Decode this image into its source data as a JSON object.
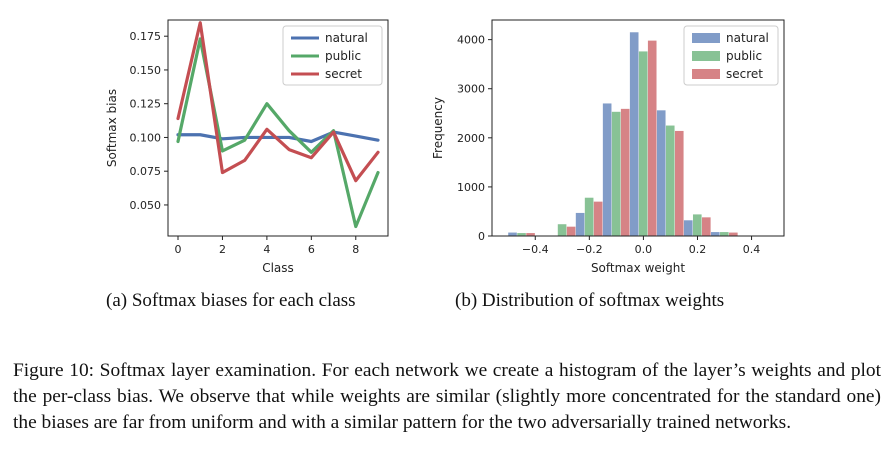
{
  "chart_data": [
    {
      "type": "line",
      "xlabel": "Class",
      "ylabel": "Softmax bias",
      "x": [
        0,
        1,
        2,
        3,
        4,
        5,
        6,
        7,
        8,
        9
      ],
      "xlim": [
        -0.45,
        9.45
      ],
      "ylim": [
        0.027,
        0.187
      ],
      "xticks": [
        "0",
        "2",
        "4",
        "6",
        "8"
      ],
      "yticks": [
        "0.050",
        "0.075",
        "0.100",
        "0.125",
        "0.150",
        "0.175"
      ],
      "legend_position": "top-right",
      "series": [
        {
          "name": "natural",
          "color": "#4c72b0",
          "values": [
            0.102,
            0.102,
            0.099,
            0.1,
            0.1,
            0.1,
            0.097,
            0.104,
            0.101,
            0.098
          ]
        },
        {
          "name": "public",
          "color": "#55a868",
          "values": [
            0.097,
            0.173,
            0.09,
            0.098,
            0.125,
            0.105,
            0.089,
            0.105,
            0.034,
            0.074
          ]
        },
        {
          "name": "secret",
          "color": "#c44e52",
          "values": [
            0.114,
            0.185,
            0.074,
            0.083,
            0.106,
            0.091,
            0.085,
            0.104,
            0.068,
            0.089
          ]
        }
      ]
    },
    {
      "type": "bar",
      "xlabel": "Softmax weight",
      "ylabel": "Frequency",
      "bin_centers": [
        -0.45,
        -0.3,
        -0.2,
        -0.1,
        0.0,
        0.1,
        0.2,
        0.3
      ],
      "bin_width": 0.1,
      "xlim": [
        -0.56,
        0.52
      ],
      "ylim": [
        0,
        4400
      ],
      "xticks": [
        "−0.4",
        "−0.2",
        "0.0",
        "0.2",
        "0.4"
      ],
      "yticks": [
        "0",
        "1000",
        "2000",
        "3000",
        "4000"
      ],
      "legend_position": "top-right",
      "series": [
        {
          "name": "natural",
          "color": "#4c72b0",
          "values": [
            70,
            0,
            470,
            2700,
            4150,
            2560,
            320,
            80
          ]
        },
        {
          "name": "public",
          "color": "#55a868",
          "values": [
            60,
            240,
            780,
            2530,
            3760,
            2250,
            440,
            80
          ]
        },
        {
          "name": "secret",
          "color": "#c44e52",
          "values": [
            60,
            190,
            700,
            2590,
            3980,
            2140,
            380,
            70
          ]
        }
      ]
    }
  ],
  "subcaptions": {
    "a": "(a) Softmax biases for each class",
    "b": "(b) Distribution of softmax weights"
  },
  "caption": "Figure 10: Softmax layer examination. For each network we create a histogram of the layer’s weights and plot the per-class bias. We observe that while weights are similar (slightly more concentrated for the standard one) the biases are far from uniform and with a similar pattern for the two adversarially trained networks."
}
